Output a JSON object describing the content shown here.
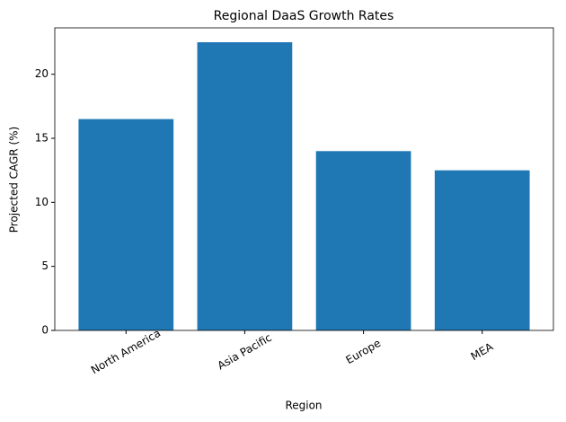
{
  "chart_data": {
    "type": "bar",
    "title": "Regional DaaS Growth Rates",
    "x_label": "Region",
    "y_label": "Projected CAGR (%)",
    "categories": [
      "North America",
      "Asia Pacific",
      "Europe",
      "MEA"
    ],
    "values": [
      16.5,
      22.5,
      14,
      12.5
    ],
    "color": "#1f77b4",
    "ylim": [
      0,
      23.625
    ],
    "yticks": [
      0,
      5,
      10,
      15,
      20
    ],
    "grid": false
  }
}
